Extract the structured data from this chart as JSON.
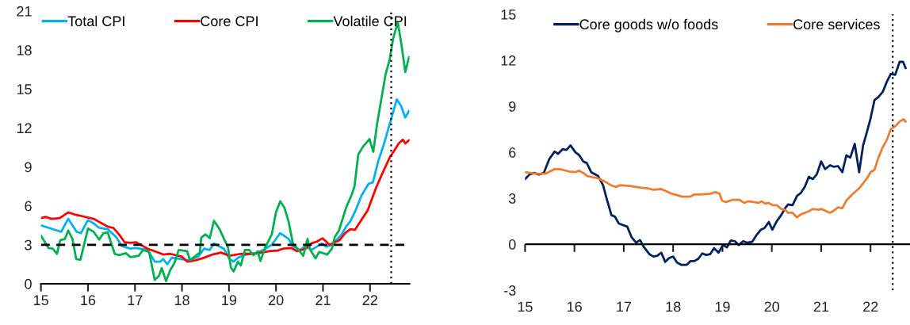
{
  "chart_data": [
    {
      "type": "line",
      "xlim": [
        15,
        22.84
      ],
      "xticks": [
        15,
        16,
        17,
        18,
        19,
        20,
        21,
        22
      ],
      "ylim": [
        0,
        21
      ],
      "yticks": [
        0,
        3,
        6,
        9,
        12,
        15,
        18,
        21
      ],
      "grid": false,
      "legend": "top",
      "line_style": "solid",
      "marker": "none",
      "ref_lines": [
        {
          "axis": "y",
          "value": 3,
          "color": "#000000",
          "line_style": "dashed"
        },
        {
          "axis": "x",
          "value": 22.45,
          "color": "#000000",
          "line_style": "dotted"
        }
      ],
      "series": [
        {
          "name": "Total CPI",
          "color": "#00b0f0",
          "x": [
            15,
            15.34,
            15.43,
            15.58,
            15.76,
            15.85,
            16.0,
            16.12,
            16.24,
            16.42,
            16.6,
            16.72,
            16.9,
            17.02,
            17.27,
            17.42,
            17.54,
            17.6,
            17.69,
            17.78,
            17.99,
            18.14,
            18.35,
            18.47,
            18.59,
            18.68,
            18.89,
            19.01,
            19.1,
            19.19,
            19.37,
            19.55,
            19.73,
            19.91,
            20.09,
            20.27,
            20.36,
            20.51,
            20.63,
            20.75,
            20.84,
            20.98,
            21.07,
            21.19,
            21.4,
            21.49,
            21.58,
            21.7,
            21.82,
            21.97,
            22.06,
            22.18,
            22.3,
            22.45,
            22.57,
            22.66,
            22.75,
            22.83
          ],
          "values": [
            4.5,
            4.1,
            4.0,
            5.0,
            4.0,
            3.9,
            4.9,
            4.65,
            4.3,
            4.2,
            3.6,
            2.9,
            2.7,
            2.75,
            2.6,
            1.7,
            1.7,
            1.9,
            1.5,
            2.0,
            1.9,
            1.8,
            2.1,
            2.7,
            2.6,
            3.1,
            2.7,
            1.9,
            1.7,
            2.0,
            2.25,
            2.35,
            2.6,
            3.0,
            3.9,
            3.45,
            2.9,
            2.6,
            2.9,
            2.6,
            2.8,
            3.1,
            2.85,
            3.0,
            3.8,
            4.4,
            4.8,
            5.7,
            6.8,
            7.7,
            7.8,
            9.5,
            10.8,
            12.7,
            14.2,
            13.7,
            12.8,
            13.3
          ]
        },
        {
          "name": "Core CPI",
          "color": "#ff0000",
          "x": [
            15,
            15.1,
            15.22,
            15.4,
            15.58,
            15.7,
            15.88,
            16.12,
            16.42,
            16.54,
            16.66,
            16.78,
            16.9,
            17.02,
            17.27,
            17.42,
            17.6,
            17.75,
            17.99,
            18.11,
            18.29,
            18.47,
            18.65,
            18.83,
            19.01,
            19.25,
            19.55,
            19.85,
            20.03,
            20.15,
            20.33,
            20.45,
            20.63,
            20.75,
            20.87,
            20.99,
            21.14,
            21.35,
            21.47,
            21.58,
            21.68,
            21.77,
            21.95,
            22.13,
            22.25,
            22.43,
            22.49,
            22.61,
            22.7,
            22.75,
            22.83
          ],
          "values": [
            5.05,
            5.15,
            5.0,
            5.05,
            5.5,
            5.35,
            5.2,
            5.0,
            4.4,
            4.3,
            3.8,
            3.2,
            3.15,
            3.2,
            2.7,
            2.5,
            2.25,
            2.3,
            2.1,
            1.7,
            1.8,
            2.0,
            2.25,
            2.4,
            2.15,
            2.3,
            2.3,
            2.5,
            2.55,
            2.7,
            2.75,
            2.5,
            2.7,
            3.1,
            3.25,
            3.5,
            3.0,
            3.35,
            3.9,
            4.2,
            4.15,
            4.65,
            5.65,
            7.4,
            8.4,
            9.8,
            10.1,
            10.8,
            11.1,
            10.8,
            11.05
          ]
        },
        {
          "name": "Volatile CPI",
          "color": "#00b050",
          "x": [
            15,
            15.16,
            15.25,
            15.34,
            15.41,
            15.51,
            15.58,
            15.67,
            15.75,
            15.84,
            16.0,
            16.12,
            16.24,
            16.33,
            16.42,
            16.57,
            16.66,
            16.81,
            16.9,
            17.08,
            17.17,
            17.3,
            17.42,
            17.51,
            17.57,
            17.66,
            17.75,
            17.84,
            17.93,
            18.11,
            18.17,
            18.29,
            18.38,
            18.41,
            18.5,
            18.59,
            18.68,
            18.8,
            18.92,
            18.98,
            19.04,
            19.1,
            19.19,
            19.25,
            19.34,
            19.43,
            19.52,
            19.61,
            19.67,
            19.76,
            19.91,
            20.0,
            20.09,
            20.18,
            20.27,
            20.36,
            20.48,
            20.58,
            20.67,
            20.73,
            20.84,
            20.92,
            21.09,
            21.19,
            21.25,
            21.34,
            21.49,
            21.61,
            21.67,
            21.75,
            21.85,
            21.99,
            22.07,
            22.15,
            22.33,
            22.42,
            22.49,
            22.59,
            22.67,
            22.75,
            22.83
          ],
          "values": [
            3.7,
            2.75,
            2.7,
            2.3,
            3.35,
            3.45,
            4.1,
            3.45,
            1.9,
            1.85,
            4.25,
            4.0,
            3.4,
            3.9,
            3.95,
            2.3,
            2.2,
            2.35,
            2.05,
            2.15,
            2.6,
            2.45,
            0.3,
            0.6,
            1.2,
            0.2,
            1.05,
            1.6,
            2.6,
            2.5,
            1.8,
            2.15,
            2.4,
            3.55,
            3.8,
            3.5,
            4.85,
            4.2,
            3.25,
            2.8,
            1.25,
            0.95,
            1.7,
            1.4,
            2.6,
            2.6,
            2.2,
            2.5,
            1.75,
            2.7,
            3.8,
            5.5,
            6.35,
            5.85,
            4.75,
            3.1,
            2.6,
            2.15,
            3.45,
            2.6,
            1.95,
            2.45,
            2.25,
            2.7,
            3.6,
            4.1,
            5.85,
            6.85,
            7.5,
            9.95,
            10.55,
            11.15,
            10.15,
            12.3,
            16.1,
            17.3,
            18.85,
            20.15,
            18.4,
            16.3,
            17.45
          ]
        }
      ]
    },
    {
      "type": "line",
      "xlim": [
        15,
        22.8
      ],
      "xticks": [
        15,
        16,
        17,
        18,
        19,
        20,
        21,
        22
      ],
      "ylim": [
        -3,
        15
      ],
      "yticks": [
        -3,
        0,
        3,
        6,
        9,
        12,
        15
      ],
      "grid": false,
      "legend": "top",
      "line_style": "solid",
      "marker": "none",
      "ref_lines": [
        {
          "axis": "y",
          "value": 0,
          "color": "#000000",
          "line_style": "solid"
        },
        {
          "axis": "x",
          "value": 22.45,
          "color": "#000000",
          "line_style": "dotted"
        }
      ],
      "series": [
        {
          "name": "Core goods w/o foods",
          "color": "#002060",
          "x": [
            15,
            15.09,
            15.19,
            15.28,
            15.38,
            15.49,
            15.6,
            15.67,
            15.76,
            15.84,
            15.92,
            16.02,
            16.1,
            16.18,
            16.25,
            16.34,
            16.48,
            16.58,
            16.66,
            16.75,
            16.82,
            16.9,
            17.07,
            17.16,
            17.25,
            17.33,
            17.41,
            17.52,
            17.6,
            17.68,
            17.76,
            17.84,
            17.92,
            18.0,
            18.08,
            18.17,
            18.27,
            18.35,
            18.43,
            18.51,
            18.59,
            18.67,
            18.75,
            18.83,
            18.92,
            19.01,
            19.09,
            19.17,
            19.25,
            19.33,
            19.42,
            19.5,
            19.6,
            19.68,
            19.78,
            19.85,
            19.94,
            20.01,
            20.1,
            20.19,
            20.27,
            20.33,
            20.42,
            20.51,
            20.59,
            20.67,
            20.75,
            20.83,
            20.91,
            21.0,
            21.08,
            21.18,
            21.26,
            21.34,
            21.43,
            21.51,
            21.59,
            21.68,
            21.77,
            21.85,
            21.93,
            22.0,
            22.08,
            22.16,
            22.25,
            22.33,
            22.41,
            22.5,
            22.59,
            22.66,
            22.71
          ],
          "values": [
            4.25,
            4.55,
            4.65,
            4.55,
            4.65,
            5.55,
            6.05,
            5.9,
            6.2,
            6.15,
            6.45,
            6.0,
            5.8,
            5.4,
            5.3,
            4.7,
            4.45,
            3.85,
            2.9,
            1.9,
            1.8,
            1.35,
            1.15,
            0.45,
            0.1,
            0.27,
            -0.2,
            -0.65,
            -0.8,
            -0.75,
            -0.55,
            -1.15,
            -0.9,
            -0.8,
            -1.2,
            -1.35,
            -1.35,
            -1.1,
            -1.1,
            -0.95,
            -0.6,
            -0.7,
            -0.65,
            -0.25,
            -0.55,
            -0.05,
            -0.2,
            0.25,
            0.2,
            -0.05,
            0.2,
            0.1,
            0.15,
            0.55,
            0.95,
            1.05,
            1.45,
            0.95,
            1.5,
            1.9,
            2.35,
            2.6,
            2.55,
            3.15,
            3.35,
            3.75,
            4.4,
            4.25,
            4.55,
            5.4,
            4.9,
            5.15,
            5.05,
            5.1,
            4.7,
            5.8,
            5.65,
            6.55,
            4.7,
            6.45,
            7.35,
            8.2,
            9.4,
            9.6,
            9.95,
            10.6,
            11.1,
            11.05,
            11.9,
            11.9,
            11.5
          ]
        },
        {
          "name": "Core services",
          "color": "#ed7d31",
          "x": [
            15,
            15.2,
            15.41,
            15.6,
            15.7,
            15.89,
            16.02,
            16.09,
            16.18,
            16.26,
            16.48,
            16.61,
            16.77,
            16.85,
            16.93,
            17.12,
            17.33,
            17.49,
            17.6,
            17.76,
            17.97,
            18.19,
            18.34,
            18.43,
            18.56,
            18.75,
            18.86,
            18.94,
            18.99,
            19.07,
            19.21,
            19.34,
            19.44,
            19.52,
            19.73,
            19.79,
            19.87,
            19.94,
            20.01,
            20.1,
            20.19,
            20.27,
            20.33,
            20.42,
            20.51,
            20.59,
            20.75,
            20.83,
            20.94,
            21.0,
            21.18,
            21.26,
            21.34,
            21.43,
            21.51,
            21.63,
            21.77,
            21.93,
            22.0,
            22.08,
            22.16,
            22.25,
            22.33,
            22.41,
            22.5,
            22.59,
            22.67,
            22.71
          ],
          "values": [
            4.7,
            4.6,
            4.6,
            4.9,
            4.9,
            4.75,
            4.7,
            4.8,
            4.65,
            4.45,
            4.3,
            4.1,
            3.8,
            3.75,
            3.85,
            3.8,
            3.7,
            3.65,
            3.55,
            3.6,
            3.3,
            3.1,
            3.1,
            3.25,
            3.25,
            3.3,
            3.4,
            3.3,
            2.85,
            2.75,
            2.9,
            2.9,
            2.7,
            2.8,
            2.7,
            2.8,
            2.65,
            2.7,
            2.55,
            2.55,
            2.3,
            2.25,
            2.05,
            2.05,
            1.75,
            1.95,
            2.15,
            2.3,
            2.25,
            2.3,
            2.05,
            2.2,
            2.4,
            2.35,
            2.85,
            3.25,
            3.65,
            4.3,
            4.7,
            4.85,
            5.65,
            6.35,
            6.8,
            7.5,
            7.7,
            8.0,
            8.15,
            8.0
          ]
        }
      ]
    }
  ]
}
